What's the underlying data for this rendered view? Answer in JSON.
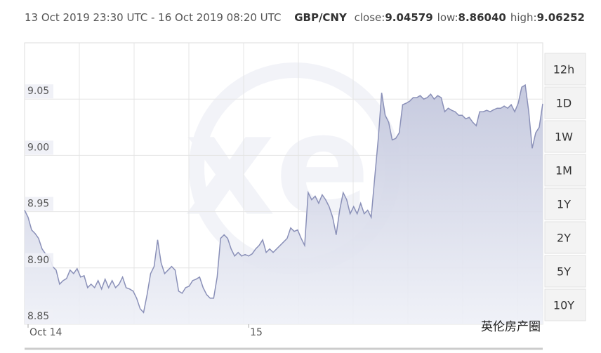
{
  "chart_data": {
    "type": "area",
    "title": "13 Oct 2019 23:30 UTC - 16 Oct 2019 08:20 UTC",
    "pair": "GBP/CNY",
    "stats": [
      {
        "label": "close:",
        "value": "9.04579"
      },
      {
        "label": "low:",
        "value": "8.86040"
      },
      {
        "label": "high:",
        "value": "9.06252"
      }
    ],
    "color": "#8a90b8",
    "fill": "#c5c9de",
    "ylim": [
      8.85,
      9.1
    ],
    "yticks": [
      8.85,
      {
        "value": 8.9,
        "label": "8.90"
      },
      8.95,
      {
        "value": 9,
        "label": "9.00"
      },
      9.05
    ],
    "xlim": [
      0,
      148
    ],
    "xticks": [
      {
        "value": 1,
        "label": "Oct 14"
      },
      {
        "value": 64,
        "label": "15"
      }
    ],
    "grid": true,
    "values": [
      8.9513,
      8.945,
      8.9338,
      8.9306,
      8.9263,
      8.9169,
      8.9125,
      8.9106,
      8.9013,
      8.8981,
      8.8856,
      8.8888,
      8.8906,
      8.8981,
      8.895,
      8.8994,
      8.8919,
      8.8931,
      8.8825,
      8.8856,
      8.8825,
      8.8888,
      8.8813,
      8.89,
      8.8825,
      8.8888,
      8.8825,
      8.8856,
      8.8919,
      8.8825,
      8.8813,
      8.8794,
      8.8731,
      8.8638,
      8.8604,
      8.8763,
      8.895,
      8.9013,
      8.925,
      8.9044,
      8.895,
      8.8981,
      8.9013,
      8.8981,
      8.8794,
      8.8775,
      8.8825,
      8.8838,
      8.8888,
      8.89,
      8.8919,
      8.8825,
      8.8763,
      8.8731,
      8.8731,
      8.8919,
      8.9263,
      8.9294,
      8.9263,
      8.9169,
      8.9106,
      8.9138,
      8.9106,
      8.9119,
      8.9106,
      8.9125,
      8.9169,
      8.92,
      8.925,
      8.9138,
      8.9169,
      8.9138,
      8.9169,
      8.92,
      8.9231,
      8.9263,
      8.9356,
      8.9325,
      8.9338,
      8.9263,
      8.92,
      8.9669,
      8.9606,
      8.9638,
      8.9575,
      8.965,
      8.9606,
      8.9544,
      8.945,
      8.9294,
      8.9513,
      8.9669,
      8.9606,
      8.9481,
      8.9544,
      8.9481,
      8.9575,
      8.9481,
      8.9513,
      8.945,
      8.9794,
      9.0138,
      9.0556,
      9.0356,
      9.0294,
      9.0138,
      9.015,
      9.02,
      9.045,
      9.0463,
      9.0481,
      9.0513,
      9.0513,
      9.0531,
      9.05,
      9.0513,
      9.0544,
      9.05,
      9.0531,
      9.0513,
      9.0388,
      9.0419,
      9.04,
      9.0388,
      9.0356,
      9.0356,
      9.0325,
      9.0338,
      9.0294,
      9.0263,
      9.0388,
      9.0388,
      9.04,
      9.0388,
      9.0406,
      9.0419,
      9.0419,
      9.0438,
      9.0419,
      9.045,
      9.0388,
      9.0463,
      9.0606,
      9.0625,
      9.0388,
      9.0063,
      9.02,
      9.025,
      9.0458
    ],
    "ranges": [
      "12h",
      "1D",
      "1W",
      "1M",
      "1Y",
      "2Y",
      "5Y",
      "10Y"
    ],
    "watermark": "英伦房产圈"
  }
}
